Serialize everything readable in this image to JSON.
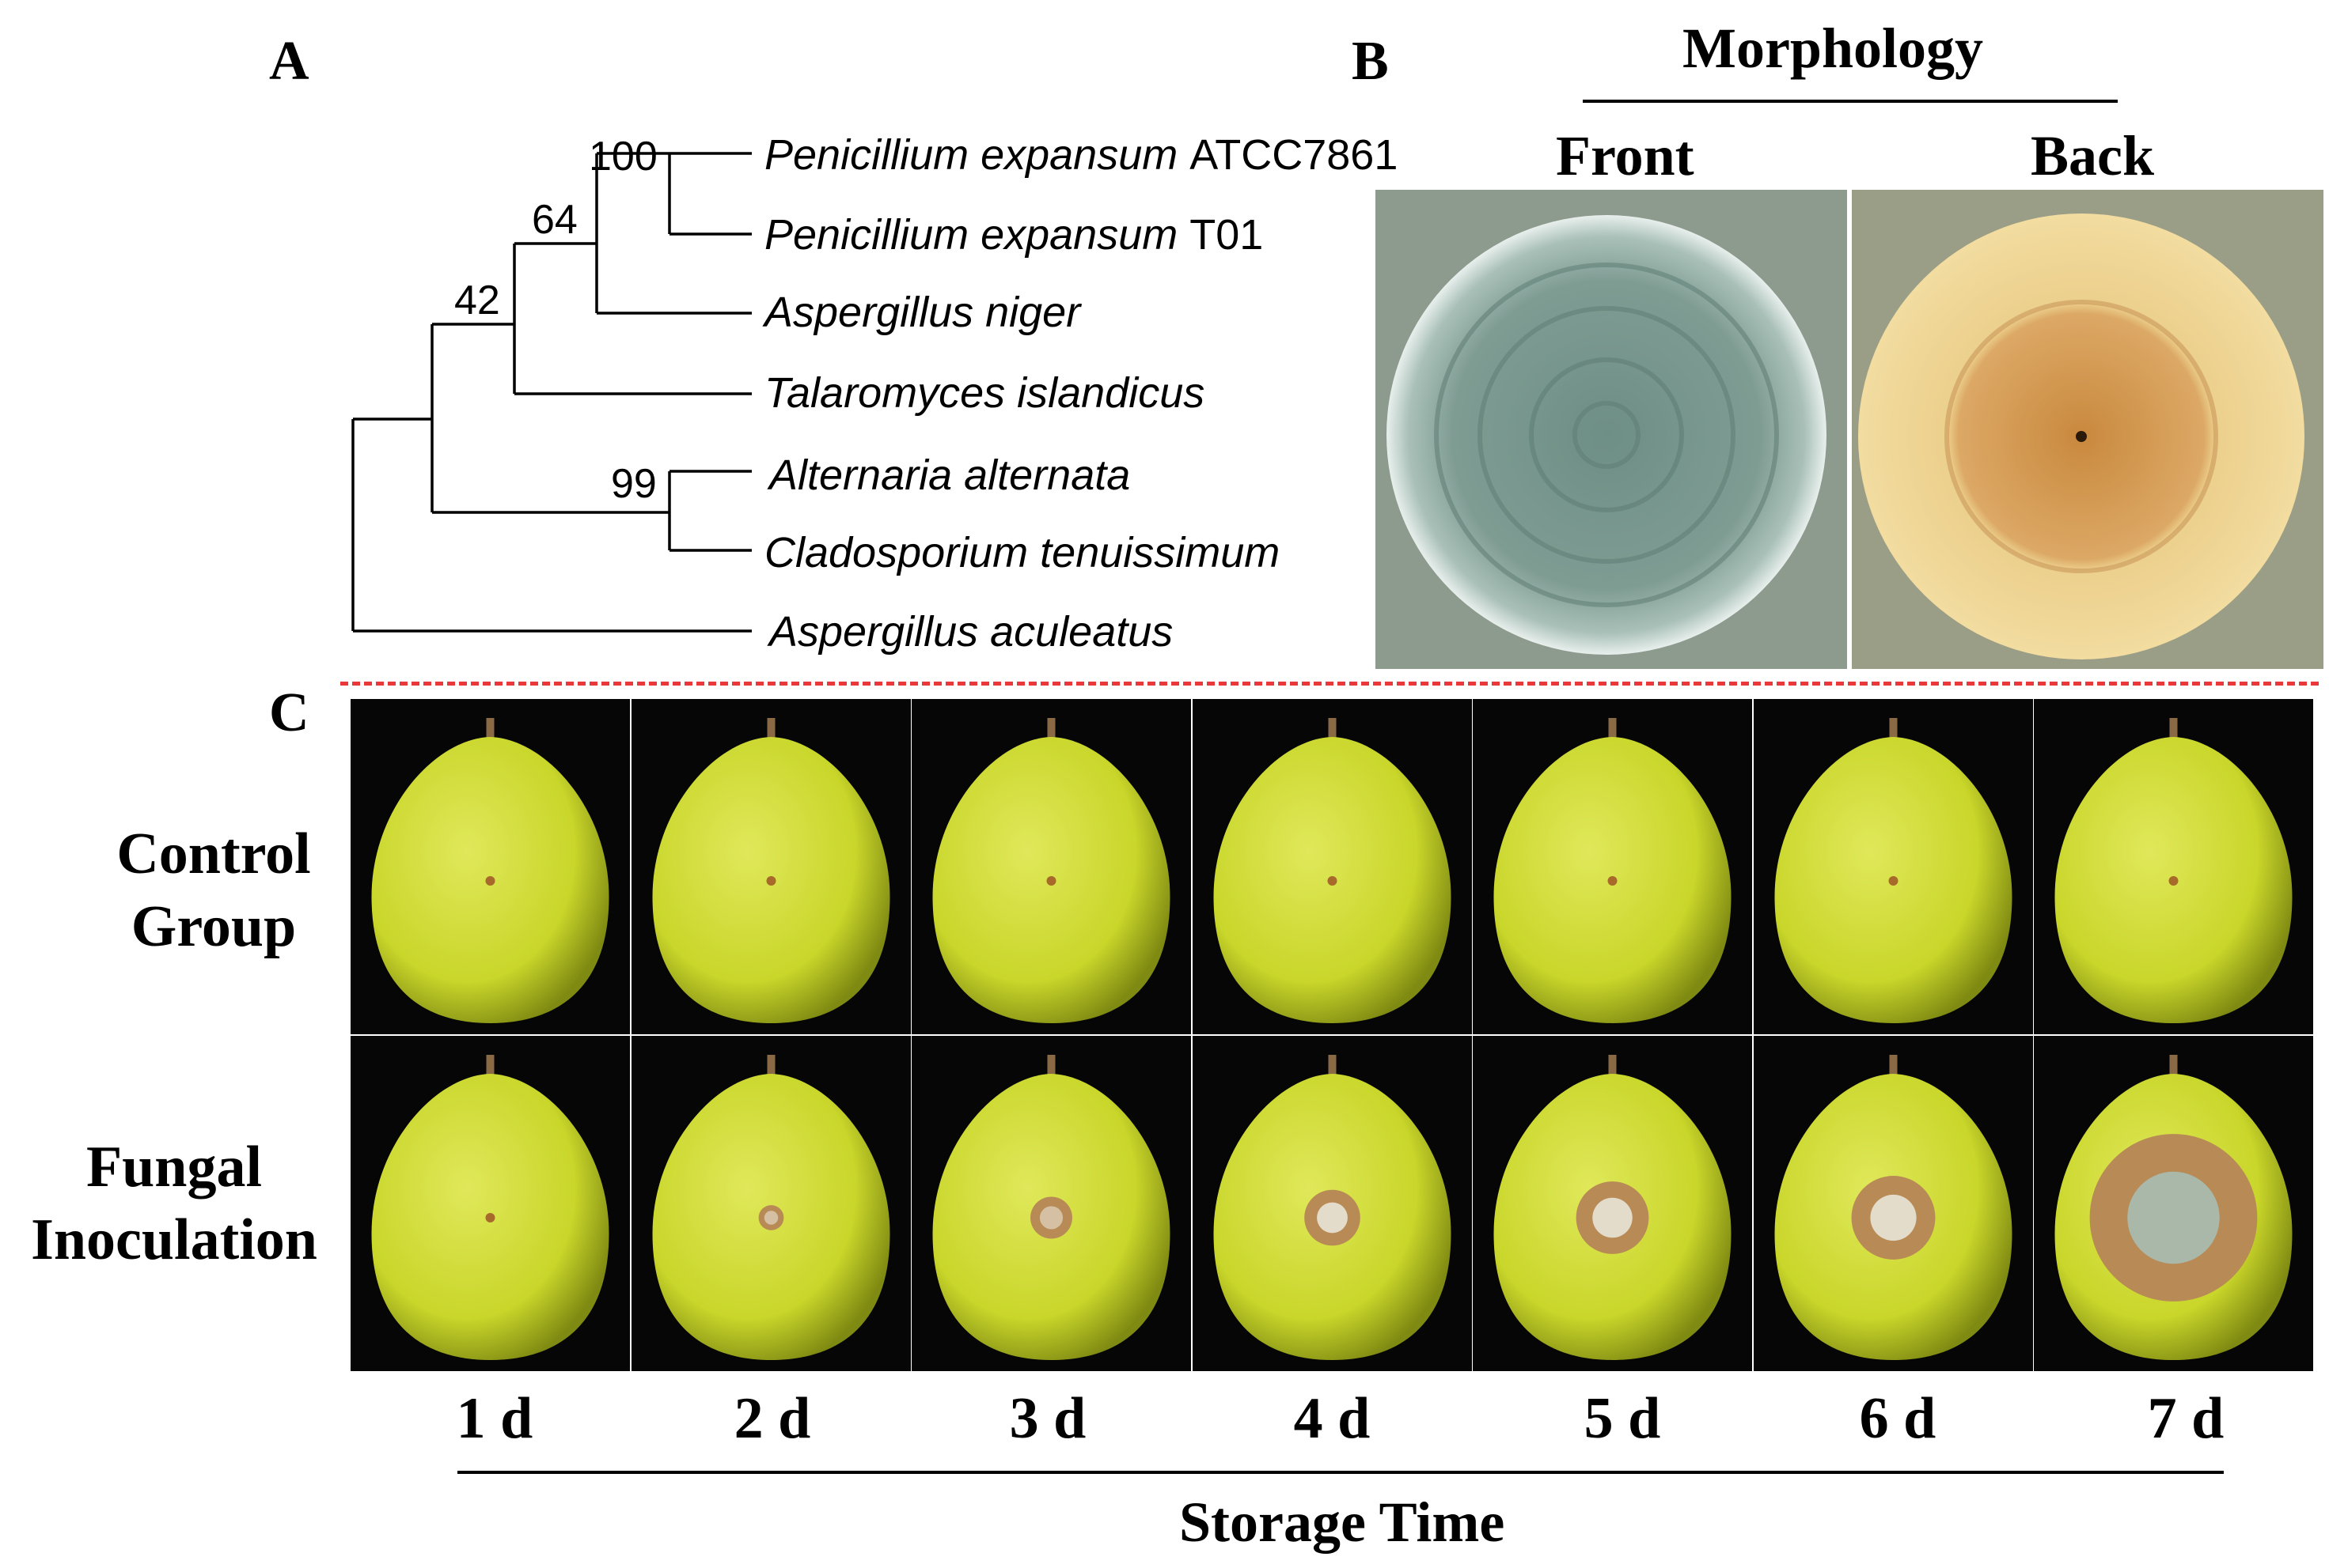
{
  "panels": {
    "a": "A",
    "b": "B",
    "c": "C"
  },
  "tree": {
    "taxa": [
      {
        "genus_species": "Penicillium expansum",
        "strain": "ATCC7861"
      },
      {
        "genus_species": "Penicillium expansum",
        "strain": "T01"
      },
      {
        "genus_species": "Aspergillus niger",
        "strain": ""
      },
      {
        "genus_species": "Talaromyces islandicus",
        "strain": ""
      },
      {
        "genus_species": "Alternaria alternata",
        "strain": ""
      },
      {
        "genus_species": "Cladosporium tenuissimum",
        "strain": ""
      },
      {
        "genus_species": "Aspergillus aculeatus",
        "strain": ""
      }
    ],
    "bootstrap": {
      "n100": "100",
      "n64": "64",
      "n42": "42",
      "n99": "99"
    }
  },
  "morphology": {
    "title": "Morphology",
    "front": "Front",
    "back": "Back"
  },
  "inoculation": {
    "rows": [
      {
        "line1": "Control",
        "line2": "Group"
      },
      {
        "line1": "Fungal",
        "line2": "Inoculation"
      }
    ],
    "days": [
      "1 d",
      "2 d",
      "3 d",
      "4 d",
      "5 d",
      "6 d",
      "7 d"
    ],
    "axis_title": "Storage Time",
    "lesion_diameter_rel": [
      0.0,
      0.09,
      0.15,
      0.2,
      0.26,
      0.3,
      0.6
    ],
    "colors": {
      "fruit": "#c9d62a",
      "lesion": "#b88a55",
      "mold": "#a9bcb4",
      "divider": "#e8383a"
    }
  }
}
